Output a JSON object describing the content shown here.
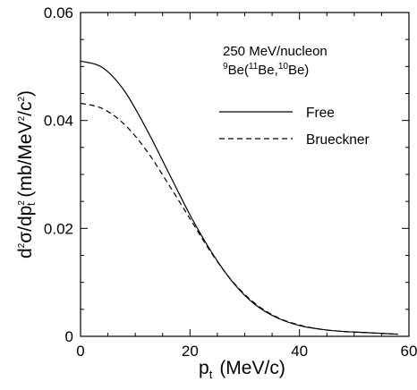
{
  "chart_data": {
    "type": "line",
    "xlabel": {
      "base": "p",
      "sub": "t",
      "unit": "(MeV/c)"
    },
    "ylabel": {
      "d": "d",
      "two": "2",
      "sigma": "σ",
      "slash_dp": "/dp",
      "two2": "2",
      "t": "t",
      "open": " (mb/MeV",
      "two3": "2",
      "slash_c": "/c",
      "two4": "2",
      "close": ")"
    },
    "xlim": [
      0,
      60
    ],
    "ylim": [
      0,
      0.06
    ],
    "xticks": [
      0,
      20,
      40,
      60
    ],
    "xtick_labels": [
      "0",
      "20",
      "40",
      "60"
    ],
    "yticks": [
      0,
      0.02,
      0.04,
      0.06
    ],
    "ytick_labels": [
      "0",
      "0.02",
      "0.04",
      "0.06"
    ],
    "grid": false,
    "annotation": {
      "line1": "250 MeV/nucleon",
      "line2": {
        "a_sup": "9",
        "a": "Be(",
        "b_sup": "11",
        "b": "Be,",
        "c_sup": "10",
        "c": "Be)"
      }
    },
    "legend_position": "upper-right",
    "series": [
      {
        "name": "Free",
        "style": "solid",
        "color": "#000000",
        "x": [
          0,
          4,
          8,
          12,
          16,
          20,
          24,
          28,
          32,
          36,
          40,
          44,
          48,
          52,
          56,
          58
        ],
        "y": [
          0.051,
          0.0498,
          0.0455,
          0.0385,
          0.0305,
          0.0225,
          0.0155,
          0.0098,
          0.0058,
          0.0034,
          0.002,
          0.0013,
          0.0009,
          0.0007,
          0.0005,
          0.0004
        ]
      },
      {
        "name": "Brueckner",
        "style": "dashed",
        "color": "#000000",
        "x": [
          0,
          4,
          8,
          12,
          16,
          20,
          24,
          28,
          32,
          36,
          40,
          44,
          48,
          52,
          56,
          58
        ],
        "y": [
          0.0432,
          0.0422,
          0.0393,
          0.0345,
          0.0283,
          0.0218,
          0.0153,
          0.0099,
          0.006,
          0.0035,
          0.0021,
          0.0013,
          0.0009,
          0.0007,
          0.0005,
          0.0004
        ]
      }
    ]
  }
}
